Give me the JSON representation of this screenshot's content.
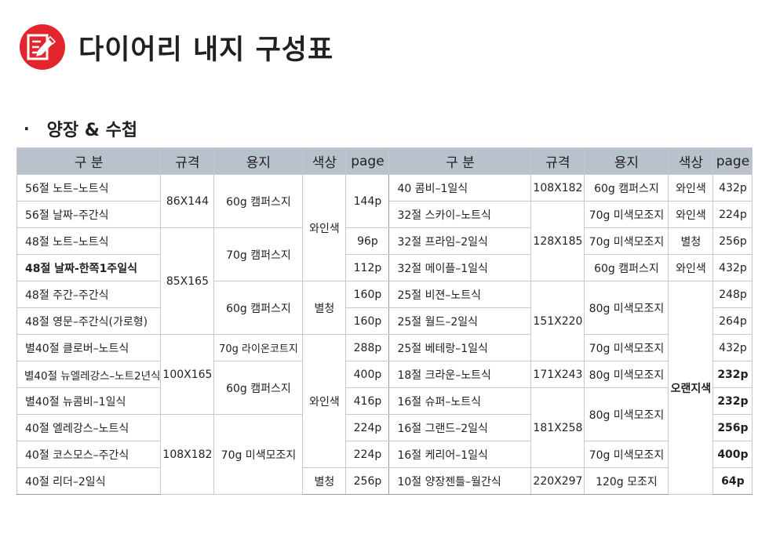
{
  "title": "다이어리 내지 구성표",
  "section": {
    "bullet": "·",
    "label": "양장 & 수첩"
  },
  "colors": {
    "icon_red": "#e3262d",
    "header_bg": "#b8c1cc"
  },
  "headers": {
    "name": "구 분",
    "size": "규격",
    "paper": "용지",
    "color": "색상",
    "page": "page"
  },
  "left": {
    "names": [
      "56절 노트–노트식",
      "56절 날짜–주간식",
      "48절 노트–노트식",
      "48절  날짜-한쪽1주일식",
      "48절 주간–주간식",
      "48절 영문–주간식(가로형)",
      "별40절 클로버–노트식",
      "별40절 뉴엘레강스–노트2년식",
      "별40절 뉴콤비–1일식",
      "40절 엘레강스–노트식",
      "40절 코스모스–주간식",
      "40절 리더–2일식"
    ],
    "sizes": [
      "86X144",
      "85X165",
      "100X165",
      "108X182"
    ],
    "papers": [
      "60g 캠퍼스지",
      "70g 캠퍼스지",
      "60g 캠퍼스지",
      "70g 라이온코트지",
      "60g 캠퍼스지",
      "70g 미색모조지"
    ],
    "colors": [
      "와인색",
      "별청",
      "와인색",
      "별청"
    ],
    "pages": [
      "144p",
      "96p",
      "112p",
      "160p",
      "160p",
      "288p",
      "400p",
      "416p",
      "224p",
      "224p",
      "256p"
    ]
  },
  "right": {
    "names": [
      "40  콤비–1일식",
      "32절 스카이–노트식",
      "32절 프라임–2일식",
      "32절 메이플–1일식",
      "25절 비젼–노트식",
      "25절 월드–2일식",
      "25절 베테랑–1일식",
      "18절 크라운–노트식",
      "16절 슈퍼–노트식",
      "16절 그랜드–2일식",
      "16절 케리어–1일식",
      "10절 양장젠틀–월간식"
    ],
    "sizes": [
      "108X182",
      "128X185",
      "151X220",
      "171X243",
      "181X258",
      "220X297"
    ],
    "papers": [
      "60g 캠퍼스지",
      "70g 미색모조지",
      "70g 미색모조지",
      "60g 캠퍼스지",
      "80g 미색모조지",
      "70g 미색모조지",
      "80g 미색모조지",
      "80g 미색모조지",
      "70g 미색모조지",
      "120g 모조지"
    ],
    "colors": [
      "와인색",
      "와인색",
      "별청",
      "와인색",
      "오랜지색"
    ],
    "pages": [
      "432p",
      "224p",
      "256p",
      "432p",
      "248p",
      "264p",
      "432p",
      "232p",
      "232p",
      "256p",
      "400p",
      "64p"
    ]
  }
}
